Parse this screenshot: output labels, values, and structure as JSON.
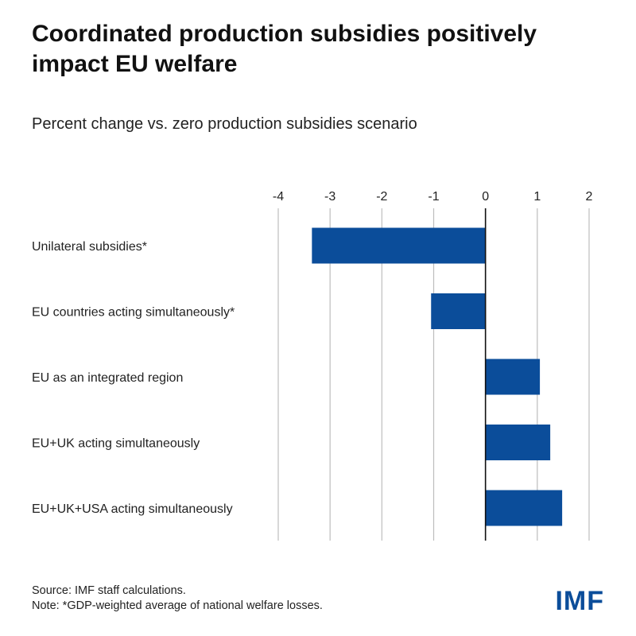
{
  "title": "Coordinated production subsidies positively impact EU welfare",
  "subtitle": "Percent change vs. zero production subsidies scenario",
  "footer": {
    "source": "Source: IMF staff calculations.",
    "note": "Note: *GDP-weighted average of national welfare losses."
  },
  "logo": {
    "text": "IMF",
    "color": "#0b4d9a"
  },
  "colors": {
    "bar": "#0b4d9a",
    "grid": "#bdbdbd",
    "axis": "#111111"
  },
  "chart_data": {
    "type": "bar",
    "orientation": "horizontal",
    "categories": [
      "Unilateral subsidies*",
      "EU countries acting simultaneously*",
      "EU as an integrated region",
      "EU+UK acting simultaneously",
      "EU+UK+USA acting simultaneously"
    ],
    "values": [
      -3.35,
      -1.05,
      1.05,
      1.25,
      1.48
    ],
    "xlim": [
      -4,
      2
    ],
    "xticks": [
      -4,
      -3,
      -2,
      -1,
      0,
      1,
      2
    ],
    "xtick_labels": [
      "-4",
      "-3",
      "-2",
      "-1",
      "0",
      "1",
      "2"
    ],
    "grid": true,
    "legend": "none"
  }
}
